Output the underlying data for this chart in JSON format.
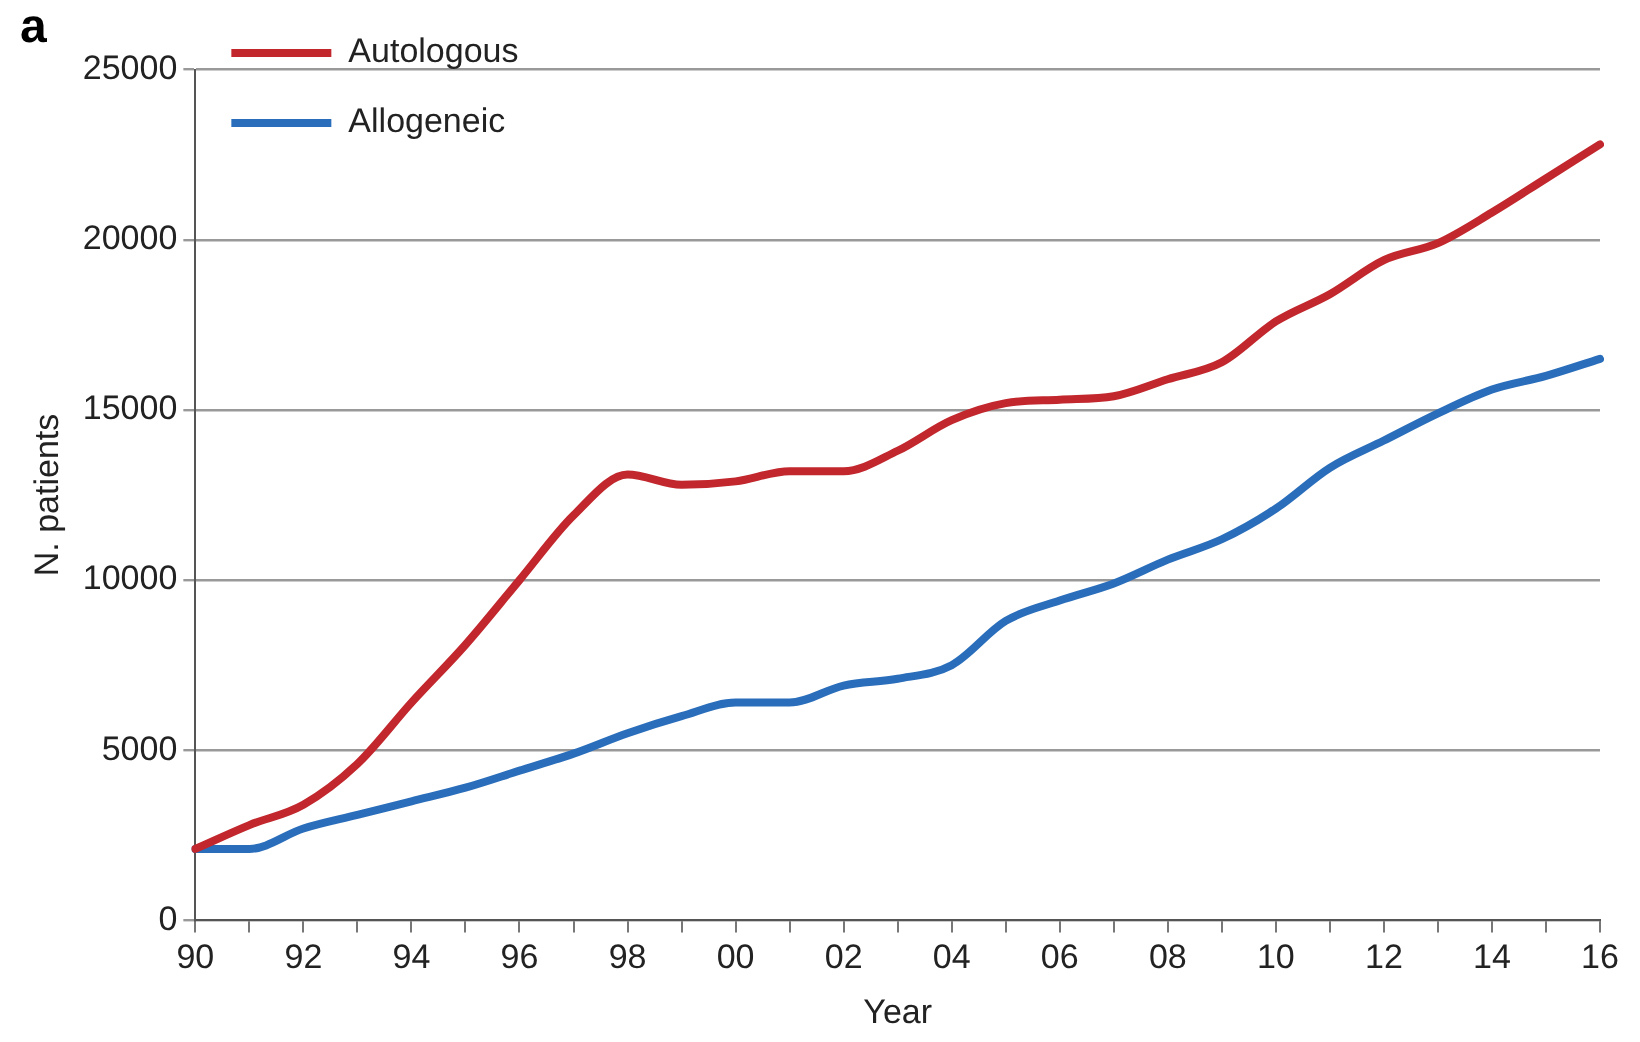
{
  "chart_data": {
    "type": "line",
    "title": "a",
    "xlabel": "Year",
    "ylabel": "N. patients",
    "categories": [
      "90",
      null,
      "92",
      null,
      "94",
      null,
      "96",
      null,
      "98",
      null,
      "00",
      null,
      "02",
      null,
      "04",
      null,
      "06",
      null,
      "08",
      null,
      "10",
      null,
      "12",
      null,
      "14",
      null,
      "16"
    ],
    "series": [
      {
        "name": "Autologous",
        "color": "#c1272d",
        "values": [
          2100,
          2800,
          3400,
          4600,
          6400,
          8100,
          10000,
          11900,
          13100,
          12800,
          12900,
          13200,
          13200,
          13800,
          14700,
          15200,
          15300,
          15400,
          15900,
          16400,
          17600,
          18400,
          19400,
          19900,
          20800,
          21800,
          22800
        ]
      },
      {
        "name": "Allogeneic",
        "color": "#2a6ebb",
        "values": [
          2100,
          2100,
          2700,
          3100,
          3500,
          3900,
          4400,
          4900,
          5500,
          6000,
          6400,
          6400,
          6900,
          7100,
          7500,
          8800,
          9400,
          9900,
          10600,
          11200,
          12100,
          13300,
          14100,
          14900,
          15600,
          16000,
          16500
        ]
      }
    ],
    "ylim": [
      0,
      25000
    ],
    "yticks": [
      0,
      5000,
      10000,
      15000,
      20000,
      25000
    ],
    "grid": "y",
    "legend": "top left",
    "marker": "none",
    "line_style": "solid"
  }
}
